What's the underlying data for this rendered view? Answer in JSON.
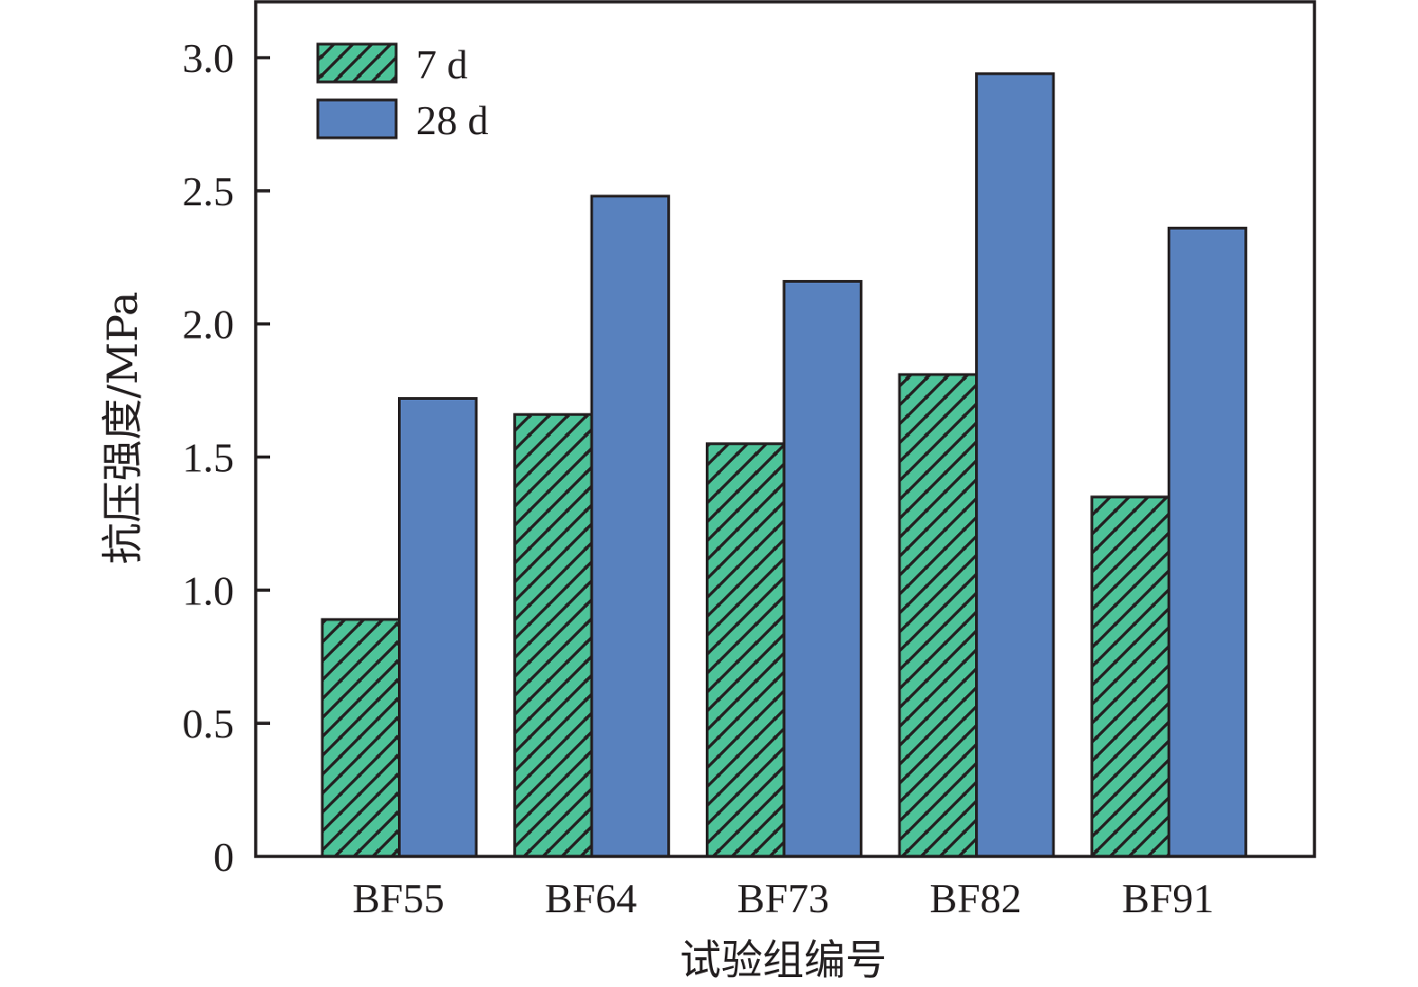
{
  "chart_data": {
    "type": "bar",
    "title": "",
    "xlabel": "试验组编号",
    "ylabel": "抗压强度/MPa",
    "categories": [
      "BF55",
      "BF64",
      "BF73",
      "BF82",
      "BF91"
    ],
    "series": [
      {
        "name": "7 d",
        "values": [
          0.89,
          1.66,
          1.55,
          1.81,
          1.35
        ],
        "color": "#4dc399",
        "hatch": "diagonal"
      },
      {
        "name": "28 d",
        "values": [
          1.72,
          2.48,
          2.16,
          2.94,
          2.36
        ],
        "color": "#5881be",
        "hatch": "none"
      }
    ],
    "ylim": [
      0,
      3.21
    ],
    "yticks": [
      0,
      0.5,
      1.0,
      1.5,
      2.0,
      2.5,
      3.0
    ],
    "ytick_labels": [
      "0",
      "0.5",
      "1.0",
      "1.5",
      "2.0",
      "2.5",
      "3.0"
    ],
    "grid": false,
    "legend_position": "top-left",
    "edge_color": "#231f20"
  }
}
